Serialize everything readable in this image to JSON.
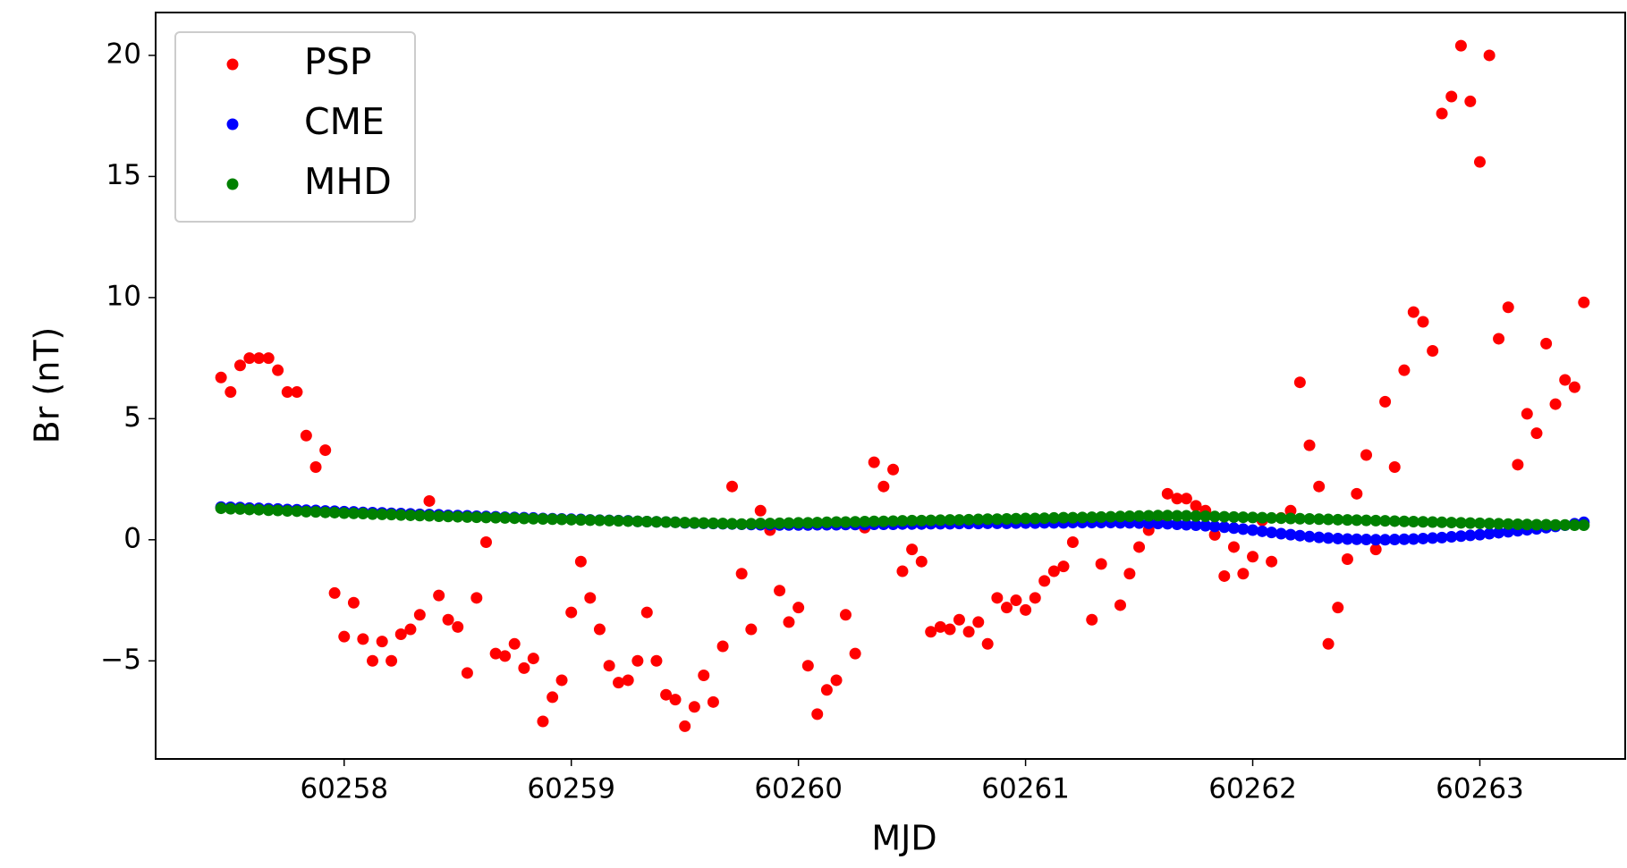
{
  "chart_data": {
    "type": "scatter",
    "xlabel": "MJD",
    "ylabel": "Br (nT)",
    "legend": "upper left",
    "grid": false,
    "xlim": [
      60257.17,
      60263.64
    ],
    "ylim": [
      -9.05,
      21.77
    ],
    "xticks": [
      60258,
      60259,
      60260,
      60261,
      60262,
      60263
    ],
    "yticks": [
      {
        "value": -5,
        "label": "−5"
      },
      0,
      5,
      10,
      15,
      20
    ],
    "x": [
      60257.458,
      60257.5,
      60257.542,
      60257.583,
      60257.625,
      60257.667,
      60257.708,
      60257.75,
      60257.792,
      60257.833,
      60257.875,
      60257.917,
      60257.958,
      60258.0,
      60258.042,
      60258.083,
      60258.125,
      60258.167,
      60258.208,
      60258.25,
      60258.292,
      60258.333,
      60258.375,
      60258.417,
      60258.458,
      60258.5,
      60258.542,
      60258.583,
      60258.625,
      60258.667,
      60258.708,
      60258.75,
      60258.792,
      60258.833,
      60258.875,
      60258.917,
      60258.958,
      60259.0,
      60259.042,
      60259.083,
      60259.125,
      60259.167,
      60259.208,
      60259.25,
      60259.292,
      60259.333,
      60259.375,
      60259.417,
      60259.458,
      60259.5,
      60259.542,
      60259.583,
      60259.625,
      60259.667,
      60259.708,
      60259.75,
      60259.792,
      60259.833,
      60259.875,
      60259.917,
      60259.958,
      60260.0,
      60260.042,
      60260.083,
      60260.125,
      60260.167,
      60260.208,
      60260.25,
      60260.292,
      60260.333,
      60260.375,
      60260.417,
      60260.458,
      60260.5,
      60260.542,
      60260.583,
      60260.625,
      60260.667,
      60260.708,
      60260.75,
      60260.792,
      60260.833,
      60260.875,
      60260.917,
      60260.958,
      60261.0,
      60261.042,
      60261.083,
      60261.125,
      60261.167,
      60261.208,
      60261.25,
      60261.292,
      60261.333,
      60261.375,
      60261.417,
      60261.458,
      60261.5,
      60261.542,
      60261.583,
      60261.625,
      60261.667,
      60261.708,
      60261.75,
      60261.792,
      60261.833,
      60261.875,
      60261.917,
      60261.958,
      60262.0,
      60262.042,
      60262.083,
      60262.125,
      60262.167,
      60262.208,
      60262.25,
      60262.292,
      60262.333,
      60262.375,
      60262.417,
      60262.458,
      60262.5,
      60262.542,
      60262.583,
      60262.625,
      60262.667,
      60262.708,
      60262.75,
      60262.792,
      60262.833,
      60262.875,
      60262.917,
      60262.958,
      60263.0,
      60263.042,
      60263.083,
      60263.125,
      60263.167,
      60263.208,
      60263.25,
      60263.292,
      60263.333,
      60263.375,
      60263.417,
      60263.458
    ],
    "series": [
      {
        "name": "PSP",
        "color": "#ff0000",
        "values": [
          6.7,
          6.1,
          7.2,
          7.5,
          7.5,
          7.5,
          7.0,
          6.1,
          6.1,
          4.3,
          3.0,
          3.7,
          -2.2,
          -4.0,
          -2.6,
          -4.1,
          -5.0,
          -4.2,
          -5.0,
          -3.9,
          -3.7,
          -3.1,
          1.6,
          -2.3,
          -3.3,
          -3.6,
          -5.5,
          -2.4,
          -0.1,
          -4.7,
          -4.8,
          -4.3,
          -5.3,
          -4.9,
          -7.5,
          -6.5,
          -5.8,
          -3.0,
          -0.9,
          -2.4,
          -3.7,
          -5.2,
          -5.9,
          -5.8,
          -5.0,
          -3.0,
          -5.0,
          -6.4,
          -6.6,
          -7.7,
          -6.9,
          -5.6,
          -6.7,
          -4.4,
          2.2,
          -1.4,
          -3.7,
          1.2,
          0.4,
          -2.1,
          -3.4,
          -2.8,
          -5.2,
          -7.2,
          -6.2,
          -5.8,
          -3.1,
          -4.7,
          0.5,
          3.2,
          2.2,
          2.9,
          -1.3,
          -0.4,
          -0.9,
          -3.8,
          -3.6,
          -3.7,
          -3.3,
          -3.8,
          -3.4,
          -4.3,
          -2.4,
          -2.8,
          -2.5,
          -2.9,
          -2.4,
          -1.7,
          -1.3,
          -1.1,
          -0.1,
          0.9,
          -3.3,
          -1.0,
          0.9,
          -2.7,
          -1.4,
          -0.3,
          0.4,
          0.9,
          1.9,
          1.7,
          1.7,
          1.4,
          1.2,
          0.2,
          -1.5,
          -0.3,
          -1.4,
          -0.7,
          0.8,
          -0.9,
          0.9,
          1.2,
          6.5,
          3.9,
          2.2,
          -4.3,
          -2.8,
          -0.8,
          1.9,
          3.5,
          -0.4,
          5.7,
          3.0,
          7.0,
          9.4,
          9.0,
          7.8,
          17.6,
          18.3,
          20.4,
          18.1,
          15.6,
          20.0,
          8.3,
          9.6,
          3.1,
          5.2,
          4.4,
          8.1,
          5.6,
          6.6,
          6.3,
          9.8
        ]
      },
      {
        "name": "CME",
        "color": "#0000ff",
        "values": [
          1.35,
          1.34,
          1.33,
          1.31,
          1.3,
          1.28,
          1.27,
          1.25,
          1.24,
          1.22,
          1.21,
          1.19,
          1.18,
          1.16,
          1.15,
          1.13,
          1.12,
          1.11,
          1.09,
          1.08,
          1.07,
          1.05,
          1.04,
          1.03,
          1.01,
          1.0,
          0.99,
          0.97,
          0.96,
          0.95,
          0.93,
          0.92,
          0.91,
          0.9,
          0.88,
          0.87,
          0.86,
          0.85,
          0.84,
          0.82,
          0.81,
          0.8,
          0.79,
          0.78,
          0.76,
          0.75,
          0.74,
          0.73,
          0.72,
          0.7,
          0.69,
          0.68,
          0.67,
          0.66,
          0.65,
          0.64,
          0.63,
          0.62,
          0.62,
          0.61,
          0.61,
          0.61,
          0.61,
          0.62,
          0.62,
          0.62,
          0.63,
          0.63,
          0.63,
          0.64,
          0.64,
          0.64,
          0.65,
          0.65,
          0.65,
          0.66,
          0.66,
          0.66,
          0.67,
          0.67,
          0.67,
          0.68,
          0.68,
          0.68,
          0.69,
          0.69,
          0.69,
          0.7,
          0.7,
          0.7,
          0.71,
          0.71,
          0.71,
          0.71,
          0.71,
          0.7,
          0.7,
          0.69,
          0.68,
          0.67,
          0.66,
          0.64,
          0.62,
          0.6,
          0.58,
          0.55,
          0.52,
          0.48,
          0.44,
          0.4,
          0.35,
          0.3,
          0.25,
          0.21,
          0.17,
          0.13,
          0.1,
          0.07,
          0.05,
          0.03,
          0.02,
          0.01,
          0.0,
          0.0,
          0.01,
          0.02,
          0.03,
          0.05,
          0.07,
          0.09,
          0.12,
          0.15,
          0.18,
          0.21,
          0.25,
          0.29,
          0.33,
          0.37,
          0.41,
          0.45,
          0.5,
          0.55,
          0.6,
          0.66,
          0.72
        ]
      },
      {
        "name": "MHD",
        "color": "#008000",
        "values": [
          1.3,
          1.28,
          1.27,
          1.25,
          1.24,
          1.22,
          1.21,
          1.19,
          1.18,
          1.16,
          1.15,
          1.13,
          1.12,
          1.1,
          1.09,
          1.08,
          1.06,
          1.05,
          1.04,
          1.02,
          1.01,
          1.0,
          0.99,
          0.97,
          0.96,
          0.95,
          0.94,
          0.93,
          0.92,
          0.91,
          0.9,
          0.89,
          0.88,
          0.87,
          0.86,
          0.85,
          0.84,
          0.83,
          0.82,
          0.81,
          0.8,
          0.79,
          0.78,
          0.77,
          0.76,
          0.75,
          0.74,
          0.73,
          0.72,
          0.71,
          0.7,
          0.69,
          0.68,
          0.67,
          0.66,
          0.65,
          0.66,
          0.67,
          0.67,
          0.68,
          0.69,
          0.7,
          0.7,
          0.71,
          0.72,
          0.73,
          0.73,
          0.74,
          0.75,
          0.76,
          0.76,
          0.77,
          0.78,
          0.79,
          0.79,
          0.8,
          0.81,
          0.82,
          0.82,
          0.83,
          0.84,
          0.85,
          0.85,
          0.86,
          0.87,
          0.88,
          0.88,
          0.89,
          0.9,
          0.91,
          0.91,
          0.92,
          0.93,
          0.94,
          0.95,
          0.96,
          0.97,
          0.98,
          0.99,
          1.0,
          1.0,
          0.99,
          0.99,
          0.98,
          0.97,
          0.96,
          0.95,
          0.94,
          0.93,
          0.92,
          0.91,
          0.9,
          0.89,
          0.88,
          0.87,
          0.86,
          0.85,
          0.84,
          0.83,
          0.82,
          0.81,
          0.8,
          0.79,
          0.78,
          0.77,
          0.76,
          0.75,
          0.74,
          0.73,
          0.72,
          0.71,
          0.7,
          0.69,
          0.68,
          0.67,
          0.66,
          0.65,
          0.64,
          0.63,
          0.62,
          0.62,
          0.61,
          0.61,
          0.6,
          0.6
        ]
      }
    ]
  }
}
